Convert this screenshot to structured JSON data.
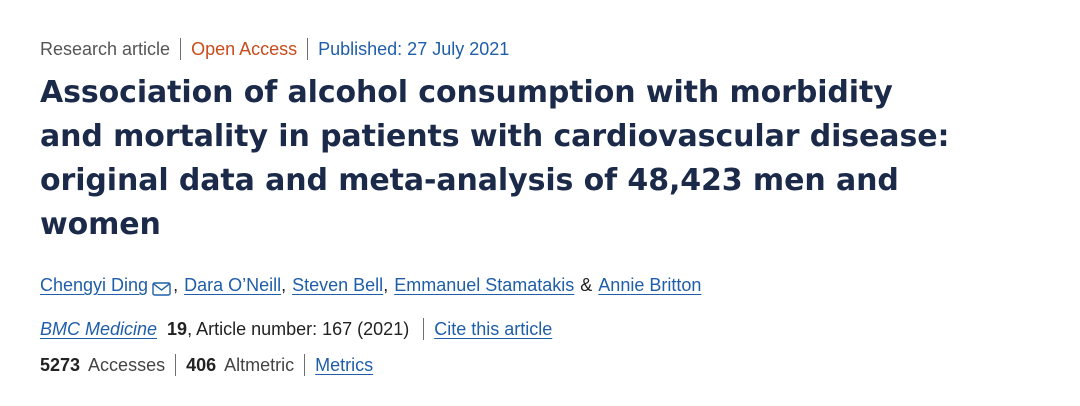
{
  "meta": {
    "article_type": "Research article",
    "access": "Open Access",
    "published": "Published: 27 July 2021"
  },
  "title": "Association of alcohol consumption with morbidity and mortality in patients with cardiovascular disease: original data and meta-analysis of 48,423 men and women",
  "authors": [
    {
      "name": "Chengyi Ding",
      "suffix": ","
    },
    {
      "name": "Dara O’Neill",
      "suffix": ","
    },
    {
      "name": "Steven Bell",
      "suffix": ","
    },
    {
      "name": "Emmanuel Stamatakis",
      "suffix": ""
    },
    {
      "name": "Annie Britton",
      "suffix": ""
    }
  ],
  "authors_conjunction": "&",
  "corresponding_icon": "mail-icon",
  "journal": {
    "name": "BMC Medicine",
    "volume": "19",
    "article_number": ", Article number: 167 (2021)",
    "cite_label": "Cite this article"
  },
  "metrics": {
    "accesses_value": "5273",
    "accesses_label": "Accesses",
    "altmetric_value": "406",
    "altmetric_label": "Altmetric",
    "metrics_link": "Metrics"
  },
  "colors": {
    "link": "#1f5ea8",
    "open_access": "#c84b1c",
    "title": "#1c2a4a"
  }
}
